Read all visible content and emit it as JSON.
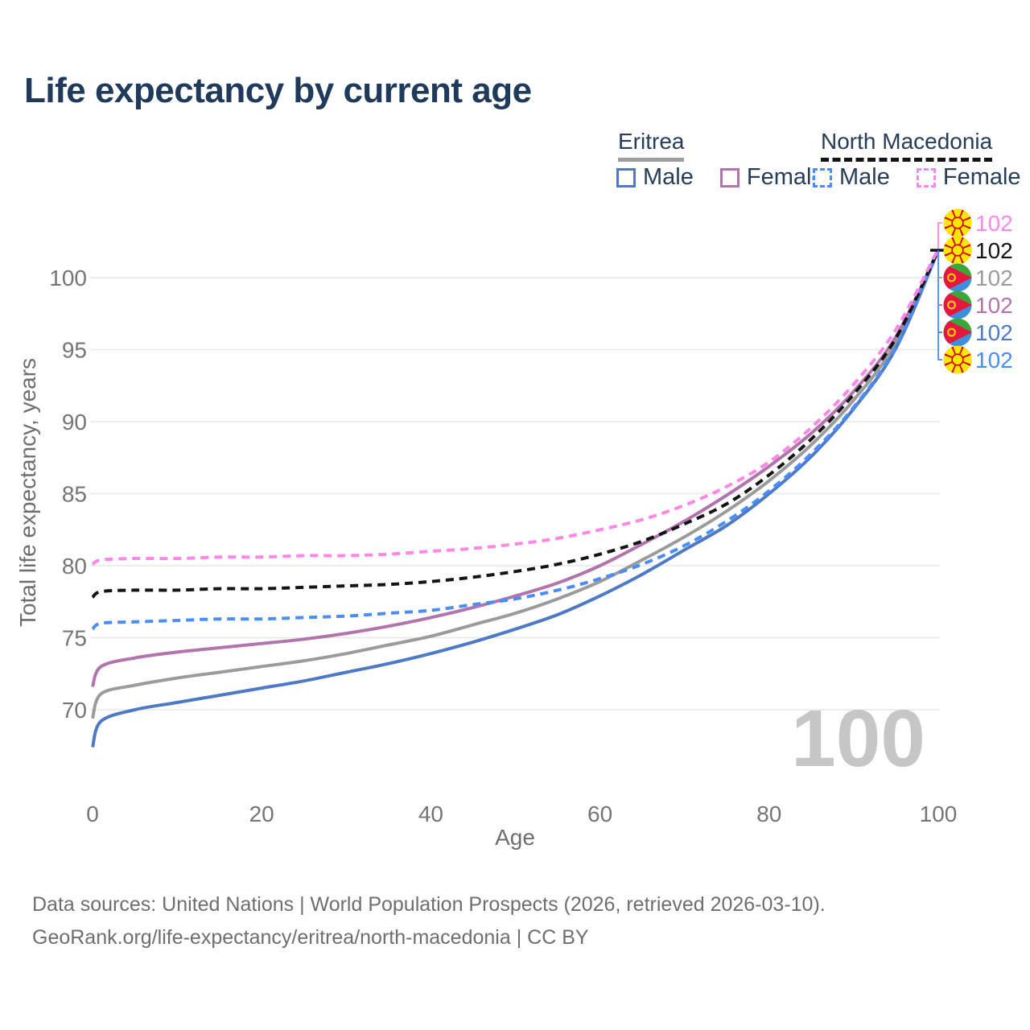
{
  "header": {
    "title": "Life expectancy by current age"
  },
  "legend": {
    "eritrea": {
      "label": "Eritrea",
      "line_style": "solid",
      "items": [
        {
          "label": "Male",
          "color": "#4d79c7"
        },
        {
          "label": "Female",
          "color": "#b274ad"
        }
      ]
    },
    "north_macedonia": {
      "label": "North Macedonia",
      "line_style": "dashed",
      "items": [
        {
          "label": "Male",
          "color": "#4a8df8"
        },
        {
          "label": "Female",
          "color": "#ff87e8"
        }
      ]
    }
  },
  "chart_data": {
    "type": "line",
    "title": "Life expectancy by current age",
    "xlabel": "Age",
    "ylabel": "Total life expectancy, years",
    "xticks": [
      0,
      20,
      40,
      60,
      80,
      100
    ],
    "yticks": [
      70,
      75,
      80,
      85,
      90,
      95,
      100
    ],
    "xlim": [
      0,
      100
    ],
    "ylim": [
      66,
      103
    ],
    "grid": "horizontal",
    "gridline_color": "#e7e7e7",
    "axis_text_color": "#757575",
    "ages": [
      0,
      1,
      5,
      10,
      15,
      20,
      25,
      30,
      35,
      40,
      45,
      50,
      55,
      60,
      65,
      70,
      75,
      80,
      85,
      90,
      95,
      100
    ],
    "series": [
      {
        "id": "eritrea-total",
        "name": "Eritrea",
        "color": "#9b9b9b",
        "dashed": false,
        "values": [
          69.4,
          71.1,
          71.7,
          72.2,
          72.6,
          73.0,
          73.4,
          73.9,
          74.5,
          75.1,
          75.9,
          76.7,
          77.7,
          78.9,
          80.4,
          82.0,
          83.8,
          85.9,
          88.4,
          91.5,
          95.5,
          101.9
        ]
      },
      {
        "id": "eritrea-male",
        "name": "Eritrea Male",
        "color": "#4d79c7",
        "dashed": false,
        "values": [
          67.4,
          69.2,
          70.0,
          70.5,
          71.0,
          71.5,
          72.0,
          72.6,
          73.2,
          73.9,
          74.7,
          75.6,
          76.6,
          77.9,
          79.4,
          81.1,
          82.8,
          85.0,
          87.6,
          90.9,
          95.1,
          101.9
        ]
      },
      {
        "id": "eritrea-female",
        "name": "Eritrea Female",
        "color": "#b274ad",
        "dashed": false,
        "values": [
          71.6,
          73.0,
          73.6,
          74.0,
          74.3,
          74.6,
          74.9,
          75.3,
          75.8,
          76.4,
          77.1,
          77.9,
          78.8,
          80.0,
          81.5,
          83.1,
          84.9,
          86.9,
          89.2,
          92.1,
          95.9,
          101.9
        ]
      },
      {
        "id": "nm-male",
        "name": "North Macedonia Male",
        "color": "#4a8df8",
        "dashed": true,
        "values": [
          75.6,
          76.0,
          76.1,
          76.2,
          76.3,
          76.3,
          76.4,
          76.5,
          76.7,
          76.9,
          77.3,
          77.7,
          78.3,
          79.1,
          80.1,
          81.4,
          83.1,
          85.2,
          87.8,
          91.0,
          95.2,
          101.9
        ]
      },
      {
        "id": "nm-total",
        "name": "North Macedonia",
        "color": "#141414",
        "dashed": true,
        "values": [
          77.8,
          78.2,
          78.3,
          78.3,
          78.4,
          78.4,
          78.5,
          78.6,
          78.7,
          78.9,
          79.2,
          79.6,
          80.1,
          80.8,
          81.7,
          82.9,
          84.3,
          86.3,
          88.8,
          91.9,
          95.8,
          101.9
        ]
      },
      {
        "id": "nm-female",
        "name": "North Macedonia Female",
        "color": "#ff87e8",
        "dashed": true,
        "values": [
          80.1,
          80.4,
          80.5,
          80.5,
          80.6,
          80.6,
          80.7,
          80.7,
          80.8,
          81.0,
          81.2,
          81.5,
          81.9,
          82.5,
          83.2,
          84.2,
          85.5,
          87.2,
          89.6,
          92.6,
          96.4,
          102.0
        ]
      }
    ],
    "end_labels": [
      {
        "flag": "north-macedonia",
        "value": "102",
        "color": "#ff87e8"
      },
      {
        "flag": "north-macedonia",
        "value": "102",
        "color": "#141414"
      },
      {
        "flag": "eritrea",
        "value": "102",
        "color": "#9b9b9b"
      },
      {
        "flag": "eritrea",
        "value": "102",
        "color": "#b274ad"
      },
      {
        "flag": "eritrea",
        "value": "102",
        "color": "#4d79c7"
      },
      {
        "flag": "north-macedonia",
        "value": "102",
        "color": "#4a8df8"
      }
    ],
    "watermark": "100",
    "watermark_color": "#c6c6c6"
  },
  "footer": {
    "line1": "Data sources: United Nations | World Population Prospects (2026, retrieved 2026-03-10).",
    "line2": "GeoRank.org/life-expectancy/eritrea/north-macedonia | CC BY"
  }
}
